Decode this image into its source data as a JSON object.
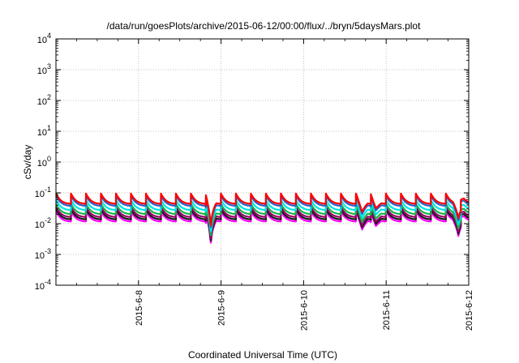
{
  "chart_data": {
    "type": "line",
    "title": "/data/run/goesPlots/archive/2015-06-12/00:00/flux/../bryn/5daysMars.plot",
    "xlabel": "Coordinated Universal Time (UTC)",
    "ylabel": "cSv/day",
    "yscale": "log",
    "grid": true,
    "xlim": [
      "2015-06-07T00:00",
      "2015-06-12T00:00"
    ],
    "ylim": [
      0.0001,
      10000
    ],
    "x_ticks": [
      "2015-6-8",
      "2015-6-9",
      "2015-6-10",
      "2015-6-11",
      "2015-6-12"
    ],
    "y_ticks": [
      {
        "base": "10",
        "exp": "-4"
      },
      {
        "base": "10",
        "exp": "-3"
      },
      {
        "base": "10",
        "exp": "-2"
      },
      {
        "base": "10",
        "exp": "-1"
      },
      {
        "base": "10",
        "exp": "0"
      },
      {
        "base": "10",
        "exp": "1"
      },
      {
        "base": "10",
        "exp": "2"
      },
      {
        "base": "10",
        "exp": "3"
      },
      {
        "base": "10",
        "exp": "4"
      }
    ],
    "sawtooth": {
      "x_start": "2015-06-07T00:00",
      "cycle_hours": 4.36,
      "cycle_count": 28,
      "peak_factor": 2.2
    },
    "series": [
      {
        "color": "#ff00ff",
        "base": 0.0115
      },
      {
        "color": "#1a1a1a",
        "base": 0.0135
      },
      {
        "color": "#990066",
        "base": 0.016
      },
      {
        "color": "#19b24a",
        "base": 0.02
      },
      {
        "color": "#00e5e5",
        "base": 0.027
      },
      {
        "color": "#2c61c9",
        "base": 0.037
      },
      {
        "color": "#ff0000",
        "base": 0.043
      }
    ],
    "dips": [
      {
        "x": "2015-06-08T21:00",
        "factor": 0.13
      },
      {
        "x": "2015-06-10T17:00",
        "factor": 0.45
      },
      {
        "x": "2015-06-10T21:00",
        "factor": 0.55
      },
      {
        "x": "2015-06-11T21:00",
        "factor": 0.33
      }
    ]
  }
}
